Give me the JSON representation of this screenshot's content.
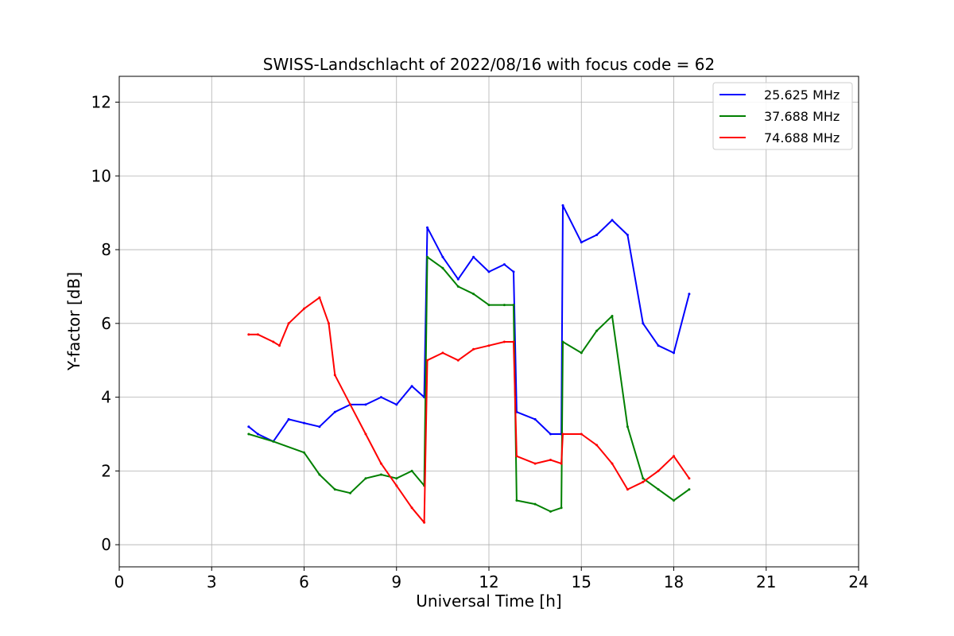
{
  "chart_data": {
    "type": "line",
    "title": "SWISS-Landschlacht of 2022/08/16 with focus code = 62",
    "xlabel": "Universal Time [h]",
    "ylabel": "Y-factor [dB]",
    "xlim": [
      0,
      24
    ],
    "ylim": [
      -0.6,
      12.7
    ],
    "xticks": [
      "0",
      "3",
      "6",
      "9",
      "12",
      "15",
      "18",
      "21",
      "24"
    ],
    "yticks": [
      "0",
      "2",
      "4",
      "6",
      "8",
      "10",
      "12"
    ],
    "grid": true,
    "legend_position": "top-right",
    "series": [
      {
        "name": "25.625 MHz",
        "color": "#0000ff",
        "points": [
          [
            4.2,
            3.2
          ],
          [
            4.5,
            3.0
          ],
          [
            5.0,
            2.8
          ],
          [
            5.5,
            3.4
          ],
          [
            6.0,
            3.3
          ],
          [
            6.5,
            3.2
          ],
          [
            7.0,
            3.6
          ],
          [
            7.5,
            3.8
          ],
          [
            8.0,
            3.8
          ],
          [
            8.5,
            4.0
          ],
          [
            9.0,
            3.8
          ],
          [
            9.5,
            4.3
          ],
          [
            9.9,
            4.0
          ],
          [
            10.0,
            8.6
          ],
          [
            10.5,
            7.8
          ],
          [
            11.0,
            7.2
          ],
          [
            11.5,
            7.8
          ],
          [
            12.0,
            7.4
          ],
          [
            12.5,
            7.6
          ],
          [
            12.8,
            7.4
          ],
          [
            12.9,
            3.6
          ],
          [
            13.5,
            3.4
          ],
          [
            14.0,
            3.0
          ],
          [
            14.35,
            3.0
          ],
          [
            14.4,
            9.2
          ],
          [
            15.0,
            8.2
          ],
          [
            15.5,
            8.4
          ],
          [
            16.0,
            8.8
          ],
          [
            16.5,
            8.4
          ],
          [
            17.0,
            6.0
          ],
          [
            17.5,
            5.4
          ],
          [
            18.0,
            5.2
          ],
          [
            18.5,
            6.8
          ]
        ]
      },
      {
        "name": "37.688 MHz",
        "color": "#008000",
        "points": [
          [
            4.2,
            3.0
          ],
          [
            5.0,
            2.8
          ],
          [
            6.0,
            2.5
          ],
          [
            6.5,
            1.9
          ],
          [
            7.0,
            1.5
          ],
          [
            7.5,
            1.4
          ],
          [
            8.0,
            1.8
          ],
          [
            8.5,
            1.9
          ],
          [
            9.0,
            1.8
          ],
          [
            9.5,
            2.0
          ],
          [
            9.9,
            1.6
          ],
          [
            10.0,
            7.8
          ],
          [
            10.5,
            7.5
          ],
          [
            11.0,
            7.0
          ],
          [
            11.5,
            6.8
          ],
          [
            12.0,
            6.5
          ],
          [
            12.5,
            6.5
          ],
          [
            12.8,
            6.5
          ],
          [
            12.9,
            1.2
          ],
          [
            13.5,
            1.1
          ],
          [
            14.0,
            0.9
          ],
          [
            14.35,
            1.0
          ],
          [
            14.4,
            5.5
          ],
          [
            15.0,
            5.2
          ],
          [
            15.5,
            5.8
          ],
          [
            16.0,
            6.2
          ],
          [
            16.5,
            3.2
          ],
          [
            17.0,
            1.8
          ],
          [
            17.5,
            1.5
          ],
          [
            18.0,
            1.2
          ],
          [
            18.5,
            1.5
          ]
        ]
      },
      {
        "name": "74.688 MHz",
        "color": "#ff0000",
        "points": [
          [
            4.2,
            5.7
          ],
          [
            4.5,
            5.7
          ],
          [
            5.0,
            5.5
          ],
          [
            5.2,
            5.4
          ],
          [
            5.5,
            6.0
          ],
          [
            6.0,
            6.4
          ],
          [
            6.5,
            6.7
          ],
          [
            6.8,
            6.0
          ],
          [
            7.0,
            4.6
          ],
          [
            7.5,
            3.8
          ],
          [
            8.0,
            3.0
          ],
          [
            8.5,
            2.2
          ],
          [
            9.0,
            1.6
          ],
          [
            9.5,
            1.0
          ],
          [
            9.9,
            0.6
          ],
          [
            10.0,
            5.0
          ],
          [
            10.5,
            5.2
          ],
          [
            11.0,
            5.0
          ],
          [
            11.5,
            5.3
          ],
          [
            12.0,
            5.4
          ],
          [
            12.5,
            5.5
          ],
          [
            12.8,
            5.5
          ],
          [
            12.9,
            2.4
          ],
          [
            13.5,
            2.2
          ],
          [
            14.0,
            2.3
          ],
          [
            14.35,
            2.2
          ],
          [
            14.4,
            3.0
          ],
          [
            15.0,
            3.0
          ],
          [
            15.5,
            2.7
          ],
          [
            16.0,
            2.2
          ],
          [
            16.5,
            1.5
          ],
          [
            17.0,
            1.7
          ],
          [
            17.5,
            2.0
          ],
          [
            18.0,
            2.4
          ],
          [
            18.5,
            1.8
          ]
        ]
      }
    ]
  }
}
